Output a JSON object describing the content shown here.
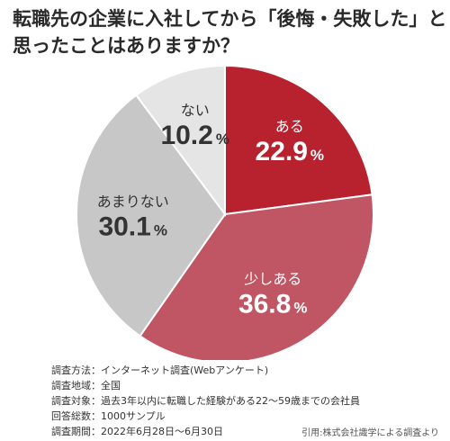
{
  "title": {
    "line1": "転職先の企業に入社してから「後悔・失敗した」と",
    "line2": "思ったことはありますか？"
  },
  "chart_data": {
    "type": "pie",
    "title": "転職先の企業に入社してから「後悔・失敗した」と思ったことはありますか？",
    "start": "12 o'clock",
    "direction": "clockwise",
    "unit": "%",
    "slices": [
      {
        "label": "ある",
        "value": 22.9,
        "color": "#b8222f",
        "text_color": "#ffffff"
      },
      {
        "label": "少しある",
        "value": 36.8,
        "color": "#c05664",
        "text_color": "#ffffff"
      },
      {
        "label": "あまりない",
        "value": 30.1,
        "color": "#c7c7c7",
        "text_color": "#333333"
      },
      {
        "label": "ない",
        "value": 10.2,
        "color": "#e5e5e5",
        "text_color": "#333333"
      }
    ]
  },
  "notes": [
    {
      "label": "調査方法：",
      "value": "インターネット調査(Webアンケート)"
    },
    {
      "label": "調査地域：",
      "value": "全国"
    },
    {
      "label": "調査対象：",
      "value": "過去3年以内に転職した経験がある22〜59歳までの会社員"
    },
    {
      "label": "回答総数：",
      "value": "1000サンプル"
    },
    {
      "label": "調査期間：",
      "value": "2022年6月28日〜6月30日"
    }
  ],
  "source": "引用:株式会社識学による調査より"
}
